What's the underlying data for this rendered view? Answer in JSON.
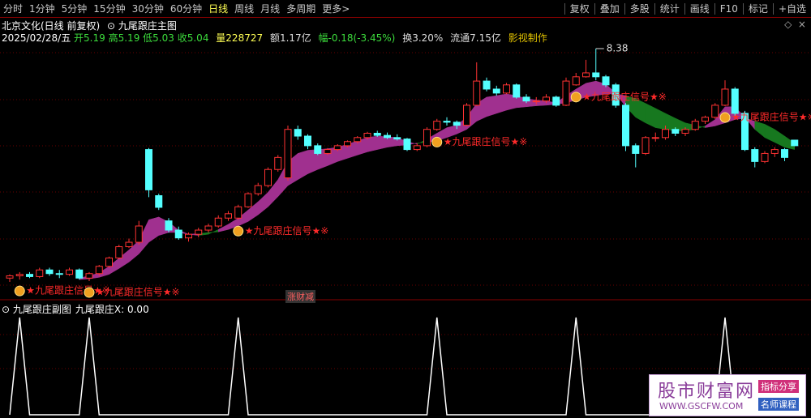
{
  "toolbar": {
    "periods": [
      "分时",
      "1分钟",
      "5分钟",
      "15分钟",
      "30分钟",
      "60分钟",
      "日线",
      "周线",
      "月线",
      "多周期",
      "更多>"
    ],
    "tools": [
      "复权",
      "叠加",
      "多股",
      "统计",
      "画线",
      "F10",
      "标记",
      "+自选"
    ]
  },
  "stock": {
    "name": "北京文化(日线 前复权)",
    "indicator": "九尾跟庄主图"
  },
  "info": {
    "date": "2025/02/28/五",
    "open": "开5.19",
    "high": "高5.19",
    "low": "低5.03",
    "close": "收5.04",
    "volume": "量228727",
    "amount": "额1.17亿",
    "change": "幅-0.18(-3.45%)",
    "turnover": "换3.20%",
    "float": "流通7.15亿",
    "sector": "影视制作"
  },
  "tag": "涨财减",
  "watermark": {
    "site": "股市财富网",
    "url": "WWW.GSCFW.COM",
    "badge1": "指标分享",
    "badge2": "名师课程"
  },
  "chart_data": [
    {
      "type": "candlestick",
      "log_scale": true,
      "ylim": [
        2.25,
        8.56
      ],
      "up_color": "#ff3232",
      "down_color": "#54ffff",
      "rise_color": "#a0308f",
      "fall_color": "#17781f",
      "signal_label": "★九尾跟庄信号★※",
      "candles": [
        [
          2.52,
          2.57,
          2.47,
          2.55
        ],
        [
          2.55,
          2.6,
          2.5,
          2.57
        ],
        [
          2.57,
          2.6,
          2.52,
          2.54
        ],
        [
          2.54,
          2.66,
          2.52,
          2.63
        ],
        [
          2.63,
          2.66,
          2.55,
          2.58
        ],
        [
          2.58,
          2.63,
          2.52,
          2.57
        ],
        [
          2.57,
          2.66,
          2.55,
          2.63
        ],
        [
          2.63,
          2.65,
          2.5,
          2.52
        ],
        [
          2.52,
          2.6,
          2.48,
          2.58
        ],
        [
          2.58,
          2.7,
          2.55,
          2.68
        ],
        [
          2.68,
          2.82,
          2.66,
          2.8
        ],
        [
          2.8,
          3.0,
          2.78,
          2.97
        ],
        [
          2.97,
          3.1,
          2.95,
          3.04
        ],
        [
          3.04,
          3.4,
          3.0,
          3.31
        ],
        [
          4.94,
          4.98,
          3.85,
          4.0
        ],
        [
          3.88,
          3.92,
          3.6,
          3.65
        ],
        [
          3.4,
          3.45,
          3.2,
          3.24
        ],
        [
          3.24,
          3.3,
          3.08,
          3.11
        ],
        [
          3.11,
          3.2,
          3.05,
          3.17
        ],
        [
          3.17,
          3.28,
          3.12,
          3.24
        ],
        [
          3.24,
          3.35,
          3.2,
          3.31
        ],
        [
          3.31,
          3.5,
          3.28,
          3.45
        ],
        [
          3.45,
          3.58,
          3.4,
          3.53
        ],
        [
          3.45,
          3.7,
          3.42,
          3.66
        ],
        [
          3.66,
          3.95,
          3.64,
          3.92
        ],
        [
          3.92,
          4.15,
          3.88,
          4.09
        ],
        [
          4.09,
          4.5,
          4.05,
          4.45
        ],
        [
          4.45,
          4.8,
          4.4,
          4.74
        ],
        [
          4.26,
          5.6,
          4.2,
          5.49
        ],
        [
          5.49,
          5.6,
          5.2,
          5.3
        ],
        [
          5.3,
          5.35,
          4.95,
          5.04
        ],
        [
          5.04,
          5.1,
          4.8,
          4.84
        ],
        [
          4.84,
          4.98,
          4.8,
          4.94
        ],
        [
          4.94,
          5.08,
          4.9,
          5.04
        ],
        [
          5.04,
          5.18,
          5.0,
          5.15
        ],
        [
          5.15,
          5.3,
          5.1,
          5.26
        ],
        [
          5.26,
          5.42,
          5.2,
          5.38
        ],
        [
          5.38,
          5.45,
          5.28,
          5.32
        ],
        [
          5.32,
          5.4,
          5.22,
          5.26
        ],
        [
          5.26,
          5.35,
          5.18,
          5.22
        ],
        [
          5.22,
          5.25,
          4.9,
          4.94
        ],
        [
          4.94,
          5.1,
          4.9,
          5.04
        ],
        [
          5.04,
          5.55,
          5.0,
          5.49
        ],
        [
          5.49,
          5.8,
          5.45,
          5.73
        ],
        [
          5.73,
          5.85,
          5.6,
          5.7
        ],
        [
          5.7,
          5.75,
          5.5,
          5.61
        ],
        [
          5.61,
          6.3,
          5.58,
          6.23
        ],
        [
          6.23,
          7.8,
          6.2,
          7.07
        ],
        [
          7.07,
          7.2,
          6.7,
          6.78
        ],
        [
          6.78,
          6.9,
          6.55,
          6.64
        ],
        [
          6.64,
          7.0,
          6.6,
          6.93
        ],
        [
          6.93,
          6.98,
          6.45,
          6.5
        ],
        [
          6.5,
          6.6,
          6.3,
          6.37
        ],
        [
          6.37,
          6.5,
          6.25,
          6.37
        ],
        [
          6.37,
          6.6,
          6.3,
          6.5
        ],
        [
          6.5,
          6.55,
          6.18,
          6.23
        ],
        [
          6.23,
          7.2,
          6.2,
          7.07
        ],
        [
          6.93,
          7.38,
          6.9,
          7.23
        ],
        [
          7.23,
          7.9,
          7.2,
          7.38
        ],
        [
          7.38,
          8.38,
          7.1,
          7.23
        ],
        [
          7.23,
          7.3,
          6.85,
          6.93
        ],
        [
          6.93,
          7.0,
          6.15,
          6.23
        ],
        [
          6.23,
          6.3,
          4.9,
          5.04
        ],
        [
          5.04,
          5.1,
          4.5,
          4.84
        ],
        [
          4.84,
          5.3,
          4.8,
          5.26
        ],
        [
          5.26,
          5.4,
          5.15,
          5.26
        ],
        [
          5.26,
          5.6,
          5.2,
          5.49
        ],
        [
          5.49,
          5.55,
          5.3,
          5.38
        ],
        [
          5.38,
          5.55,
          5.3,
          5.49
        ],
        [
          5.49,
          5.8,
          5.45,
          5.73
        ],
        [
          5.73,
          5.9,
          5.65,
          5.85
        ],
        [
          5.85,
          6.3,
          5.8,
          6.23
        ],
        [
          6.23,
          7.1,
          6.2,
          6.78
        ],
        [
          6.78,
          6.85,
          5.9,
          5.97
        ],
        [
          5.97,
          6.05,
          4.9,
          4.94
        ],
        [
          4.94,
          5.0,
          4.5,
          4.64
        ],
        [
          4.64,
          4.9,
          4.6,
          4.84
        ],
        [
          4.84,
          5.0,
          4.75,
          4.94
        ],
        [
          4.94,
          4.98,
          4.65,
          4.74
        ],
        [
          5.19,
          5.19,
          5.03,
          5.04
        ]
      ],
      "fast": [
        null,
        null,
        null,
        null,
        null,
        null,
        null,
        2.52,
        2.55,
        2.59,
        2.68,
        2.8,
        2.92,
        3.07,
        3.42,
        3.47,
        3.38,
        3.24,
        3.17,
        3.15,
        3.17,
        3.25,
        3.34,
        3.45,
        3.6,
        3.76,
        3.95,
        4.22,
        4.64,
        4.84,
        4.92,
        4.94,
        4.96,
        5.0,
        5.08,
        5.17,
        5.26,
        5.3,
        5.28,
        5.26,
        5.15,
        5.08,
        5.22,
        5.38,
        5.54,
        5.61,
        5.85,
        6.29,
        6.5,
        6.55,
        6.61,
        6.55,
        6.45,
        6.4,
        6.37,
        6.31,
        6.55,
        6.78,
        6.99,
        7.07,
        6.96,
        6.64,
        6.18,
        5.85,
        5.68,
        5.54,
        5.49,
        5.45,
        5.45,
        5.49,
        5.59,
        5.78,
        6.18,
        6.18,
        5.85,
        5.49,
        5.26,
        5.13,
        5.0,
        4.94
      ],
      "slow": [
        null,
        null,
        null,
        null,
        null,
        null,
        null,
        2.5,
        2.51,
        2.53,
        2.57,
        2.65,
        2.74,
        2.86,
        3.04,
        3.15,
        3.2,
        3.2,
        3.17,
        3.18,
        3.2,
        3.21,
        3.25,
        3.31,
        3.39,
        3.51,
        3.66,
        3.86,
        4.09,
        4.22,
        4.35,
        4.45,
        4.54,
        4.64,
        4.72,
        4.8,
        4.88,
        4.94,
        5.0,
        5.04,
        5.06,
        5.11,
        5.13,
        5.17,
        5.26,
        5.36,
        5.49,
        5.73,
        5.87,
        5.97,
        6.07,
        6.15,
        6.18,
        6.21,
        6.23,
        6.26,
        6.31,
        6.4,
        6.5,
        6.55,
        6.61,
        6.61,
        6.55,
        6.45,
        6.29,
        6.13,
        5.97,
        5.82,
        5.68,
        5.61,
        5.54,
        5.59,
        5.68,
        5.78,
        5.82,
        5.73,
        5.64,
        5.49,
        5.3,
        5.11
      ]
    },
    {
      "type": "line",
      "title": "九尾跟庄副图",
      "name": "九尾跟庄X",
      "current_label": "0.00",
      "color": "#ffffff",
      "ylim": [
        0,
        1
      ],
      "values": [
        0,
        1,
        0,
        0,
        0,
        0,
        0,
        0,
        1,
        0,
        0,
        0,
        0,
        0,
        0,
        0,
        0,
        0,
        0,
        0,
        0,
        0,
        0,
        1,
        0,
        0,
        0,
        0,
        0,
        0,
        0,
        0,
        0,
        0,
        0,
        0,
        0,
        0,
        0,
        0,
        0,
        0,
        0,
        1,
        0,
        0,
        0,
        0,
        0,
        0,
        0,
        0,
        0,
        0,
        0,
        0,
        0,
        1,
        0,
        0,
        0,
        0,
        0,
        0,
        0,
        0,
        0,
        0,
        0,
        0,
        0,
        0,
        1,
        0,
        0,
        0,
        0,
        0,
        0,
        0
      ]
    }
  ]
}
